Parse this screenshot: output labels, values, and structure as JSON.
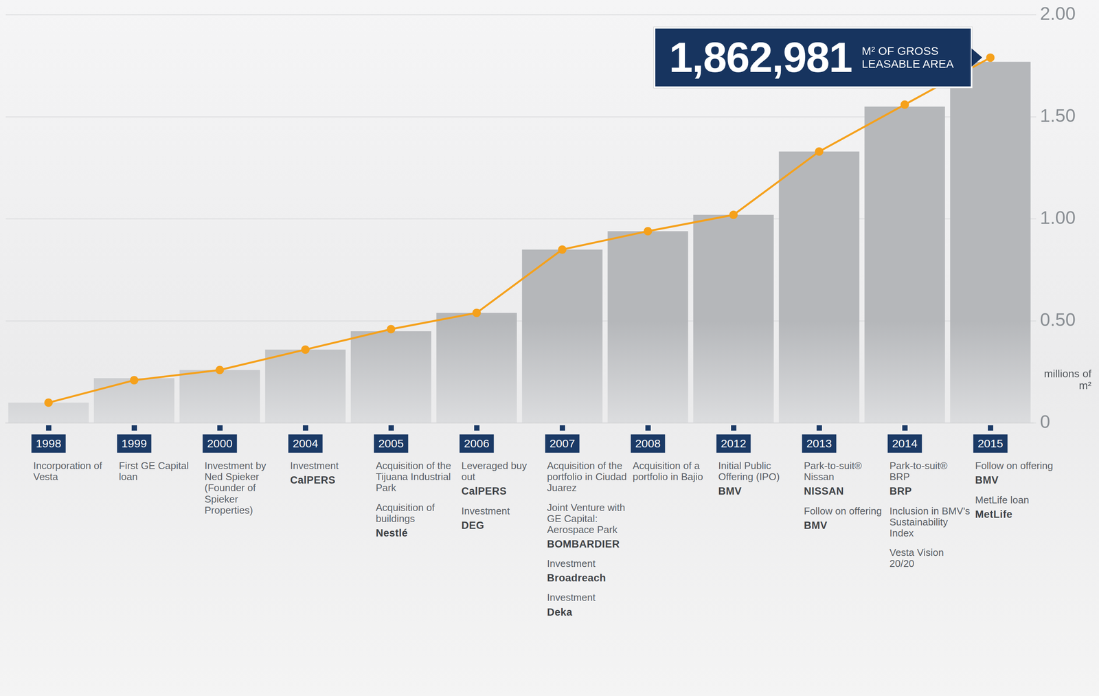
{
  "chart_data": {
    "type": "bar",
    "categories": [
      "1998",
      "1999",
      "2000",
      "2004",
      "2005",
      "2006",
      "2007",
      "2008",
      "2012",
      "2013",
      "2014",
      "2015"
    ],
    "series": [
      {
        "type": "bar",
        "color": "#b5b7ba",
        "values": [
          0.1,
          0.22,
          0.26,
          0.36,
          0.45,
          0.54,
          0.85,
          0.94,
          1.02,
          1.33,
          1.55,
          1.77
        ]
      },
      {
        "type": "line",
        "color": "#f5a11c",
        "marker": "circle",
        "values": [
          0.1,
          0.21,
          0.26,
          0.36,
          0.46,
          0.54,
          0.85,
          0.94,
          1.02,
          1.33,
          1.56,
          1.79
        ]
      }
    ],
    "ylim": [
      0,
      2
    ],
    "yticks": [
      0,
      {
        "value": 0.5,
        "label": "0.50"
      },
      {
        "value": 1,
        "label": "1.00"
      },
      {
        "value": 1.5,
        "label": "1.50"
      },
      {
        "value": 2,
        "label": "2.00"
      }
    ],
    "y_label": "millions of m²",
    "grid": true,
    "annotation": {
      "number": "1,862,981",
      "text": "M² OF GROSS LEASABLE AREA"
    },
    "milestones": [
      {
        "year": "1998",
        "items": [
          {
            "text": "Incorporation of Vesta"
          }
        ]
      },
      {
        "year": "1999",
        "items": [
          {
            "text": "First GE Capital loan"
          }
        ]
      },
      {
        "year": "2000",
        "items": [
          {
            "text": "Investment by Ned Spieker (Founder of Spieker Properties)"
          }
        ]
      },
      {
        "year": "2004",
        "items": [
          {
            "text": "Investment",
            "logo": "CalPERS"
          }
        ]
      },
      {
        "year": "2005",
        "items": [
          {
            "text": "Acquisition of the Tijuana Industrial Park"
          },
          {
            "text": "Acquisition of buildings",
            "logo": "Nestlé"
          }
        ]
      },
      {
        "year": "2006",
        "items": [
          {
            "text": "Leveraged buy out",
            "logo": "CalPERS"
          },
          {
            "text": "Investment",
            "logo": "DEG"
          }
        ]
      },
      {
        "year": "2007",
        "items": [
          {
            "text": "Acquisition of the portfolio in Ciudad Juarez"
          },
          {
            "text": "Joint Venture with GE Capital: Aerospace Park",
            "logo": "BOMBARDIER"
          },
          {
            "text": "Investment",
            "logo": "Broadreach"
          },
          {
            "text": "Investment",
            "logo": "Deka"
          }
        ]
      },
      {
        "year": "2008",
        "items": [
          {
            "text": "Acquisition of a portfolio in Bajio"
          }
        ]
      },
      {
        "year": "2012",
        "items": [
          {
            "text": "Initial Public Offering (IPO)",
            "logo": "BMV"
          }
        ]
      },
      {
        "year": "2013",
        "items": [
          {
            "text": "Park-to-suit® Nissan",
            "logo": "NISSAN"
          },
          {
            "text": "Follow on offering",
            "logo": "BMV"
          }
        ]
      },
      {
        "year": "2014",
        "items": [
          {
            "text": "Park-to-suit® BRP",
            "logo": "BRP"
          },
          {
            "text": "Inclusion in BMV's Sustainability Index"
          },
          {
            "text": "Vesta Vision 20/20"
          }
        ]
      },
      {
        "year": "2015",
        "items": [
          {
            "text": "Follow on offering",
            "logo": "BMV"
          },
          {
            "text": "MetLife loan",
            "logo": "MetLife"
          }
        ]
      }
    ]
  }
}
